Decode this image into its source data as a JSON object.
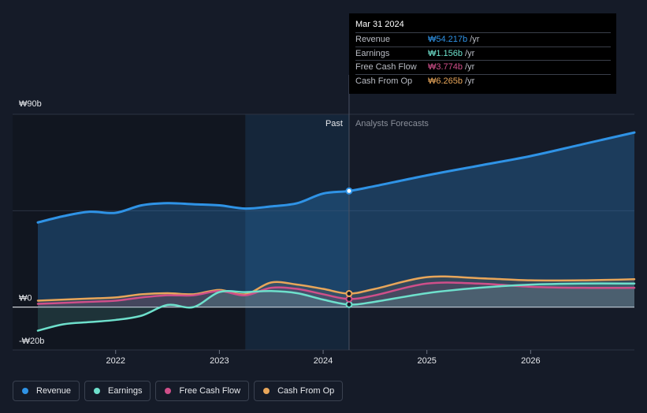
{
  "colors": {
    "revenue": "#2f93e6",
    "earnings": "#6ee0cc",
    "free_cash_flow": "#cf4f8a",
    "cash_from_op": "#e8a65a",
    "background": "#151b28",
    "past_region": "#111620",
    "highlight_band": "#1a3550"
  },
  "tooltip": {
    "date": "Mar 31 2024",
    "rows": [
      {
        "label": "Revenue",
        "value": "₩54.217b",
        "unit": "/yr",
        "color": "#2f93e6"
      },
      {
        "label": "Earnings",
        "value": "₩1.156b",
        "unit": "/yr",
        "color": "#6ee0cc"
      },
      {
        "label": "Free Cash Flow",
        "value": "₩3.774b",
        "unit": "/yr",
        "color": "#cf4f8a"
      },
      {
        "label": "Cash From Op",
        "value": "₩6.265b",
        "unit": "/yr",
        "color": "#e8a65a"
      }
    ]
  },
  "chart_data": {
    "type": "line",
    "title": "",
    "xlabel": "",
    "ylabel": "",
    "ylim": [
      -20,
      90
    ],
    "xlim": [
      2021.25,
      2027.0
    ],
    "y_tick_labels": [
      {
        "value": 90,
        "label": "₩90b"
      },
      {
        "value": 0,
        "label": "₩0"
      },
      {
        "value": -20,
        "label": "-₩20b"
      }
    ],
    "x_tick_labels": [
      {
        "value": 2022.0,
        "label": "2022"
      },
      {
        "value": 2023.0,
        "label": "2023"
      },
      {
        "value": 2024.0,
        "label": "2024"
      },
      {
        "value": 2025.0,
        "label": "2025"
      },
      {
        "value": 2026.0,
        "label": "2026"
      }
    ],
    "past_label": "Past",
    "forecast_label": "Analysts Forecasts",
    "past_end": 2024.25,
    "highlight_start": 2023.25,
    "series": [
      {
        "key": "revenue",
        "name": "Revenue",
        "x": [
          2021.25,
          2021.5,
          2021.75,
          2022.0,
          2022.25,
          2022.5,
          2022.75,
          2023.0,
          2023.25,
          2023.5,
          2023.75,
          2024.0,
          2024.25,
          2024.5,
          2025.0,
          2025.5,
          2026.0,
          2026.5,
          2027.0
        ],
        "y": [
          39.5,
          42.5,
          44.5,
          44,
          47.5,
          48.5,
          48,
          47.5,
          46,
          47,
          48.5,
          53,
          54.2,
          56.5,
          61.5,
          66,
          70.5,
          76,
          81.5
        ]
      },
      {
        "key": "earnings",
        "name": "Earnings",
        "x": [
          2021.25,
          2021.5,
          2021.75,
          2022.0,
          2022.25,
          2022.5,
          2022.75,
          2023.0,
          2023.25,
          2023.5,
          2023.75,
          2024.0,
          2024.25,
          2024.5,
          2025.0,
          2025.5,
          2026.0,
          2026.5,
          2027.0
        ],
        "y": [
          -11,
          -8,
          -7,
          -6,
          -4,
          1,
          0,
          7,
          7,
          7.5,
          6.5,
          3.5,
          1.2,
          2.5,
          6.5,
          9,
          10.5,
          11,
          11
        ]
      },
      {
        "key": "free_cash_flow",
        "name": "Free Cash Flow",
        "x": [
          2021.25,
          2021.5,
          2021.75,
          2022.0,
          2022.25,
          2022.5,
          2022.75,
          2023.0,
          2023.25,
          2023.5,
          2023.75,
          2024.0,
          2024.25,
          2024.5,
          2025.0,
          2025.5,
          2026.0,
          2026.5,
          2027.0
        ],
        "y": [
          1.5,
          2,
          2.5,
          3,
          4.5,
          5.5,
          5.5,
          7.5,
          5.5,
          9,
          8.5,
          6,
          3.8,
          5.5,
          11,
          11,
          9.5,
          9,
          9
        ]
      },
      {
        "key": "cash_from_op",
        "name": "Cash From Op",
        "x": [
          2021.25,
          2021.5,
          2021.75,
          2022.0,
          2022.25,
          2022.5,
          2022.75,
          2023.0,
          2023.25,
          2023.5,
          2023.75,
          2024.0,
          2024.25,
          2024.5,
          2025.0,
          2025.5,
          2026.0,
          2026.5,
          2027.0
        ],
        "y": [
          3,
          3.5,
          4,
          4.5,
          6,
          6.5,
          6,
          8,
          6,
          11.5,
          10.5,
          8.5,
          6.3,
          8.5,
          14,
          13.5,
          12.5,
          12.5,
          13
        ]
      }
    ]
  },
  "legend": [
    {
      "key": "revenue",
      "label": "Revenue",
      "color": "#2f93e6"
    },
    {
      "key": "earnings",
      "label": "Earnings",
      "color": "#6ee0cc"
    },
    {
      "key": "free_cash_flow",
      "label": "Free Cash Flow",
      "color": "#cf4f8a"
    },
    {
      "key": "cash_from_op",
      "label": "Cash From Op",
      "color": "#e8a65a"
    }
  ]
}
